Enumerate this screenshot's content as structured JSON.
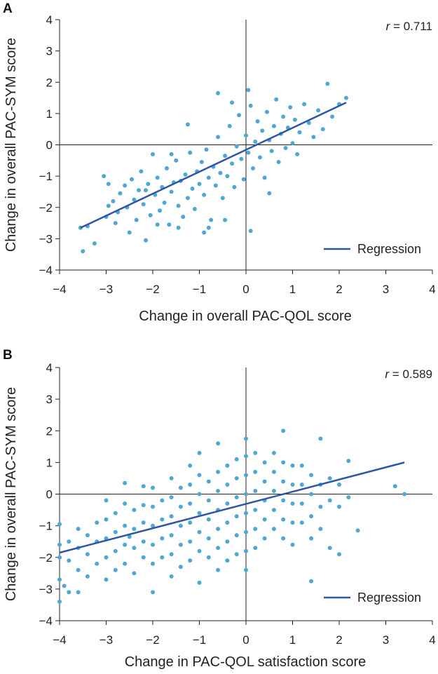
{
  "chart_data": [
    {
      "type": "scatter",
      "panel_label": "A",
      "xlabel": "Change in overall PAC-QOL score",
      "ylabel": "Change in overall PAC-SYM score",
      "xlim": [
        -4,
        4
      ],
      "ylim": [
        -4,
        4
      ],
      "xticks": [
        "−4",
        "−3",
        "−2",
        "−1",
        "0",
        "1",
        "2",
        "3",
        "4"
      ],
      "yticks": [
        "4",
        "3",
        "2",
        "1",
        "0",
        "−1",
        "−2",
        "−3",
        "−4"
      ],
      "r_label": "r",
      "r_value": " = 0.711",
      "legend": "Regression",
      "legend_position": "bottom-right",
      "point_color": "#4fa7d4",
      "line_color": "#2e56a3",
      "regression": {
        "x": [
          -3.55,
          2.15
        ],
        "y": [
          -2.65,
          1.35
        ]
      },
      "points": [
        [
          -3.55,
          -2.65
        ],
        [
          -3.5,
          -3.4
        ],
        [
          -3.25,
          -3.15
        ],
        [
          -3.05,
          -1.0
        ],
        [
          -3.0,
          -2.3
        ],
        [
          -2.95,
          -1.95
        ],
        [
          -2.85,
          -1.8
        ],
        [
          -2.8,
          -2.5
        ],
        [
          -2.75,
          -2.15
        ],
        [
          -2.7,
          -1.55
        ],
        [
          -2.6,
          -1.3
        ],
        [
          -2.55,
          -2.0
        ],
        [
          -2.5,
          -2.8
        ],
        [
          -2.45,
          -1.1
        ],
        [
          -2.4,
          -1.75
        ],
        [
          -2.35,
          -2.4
        ],
        [
          -2.3,
          -1.45
        ],
        [
          -2.25,
          -0.85
        ],
        [
          -2.2,
          -1.9
        ],
        [
          -2.15,
          -3.05
        ],
        [
          -2.1,
          -1.25
        ],
        [
          -2.05,
          -2.25
        ],
        [
          -2.0,
          -0.3
        ],
        [
          -1.95,
          -1.6
        ],
        [
          -1.9,
          -1.05
        ],
        [
          -1.85,
          -2.1
        ],
        [
          -1.8,
          -1.35
        ],
        [
          -1.75,
          -1.85
        ],
        [
          -1.7,
          -0.75
        ],
        [
          -1.65,
          -2.55
        ],
        [
          -1.6,
          -1.5
        ],
        [
          -1.55,
          -1.2
        ],
        [
          -1.5,
          -0.5
        ],
        [
          -1.45,
          -1.95
        ],
        [
          -1.4,
          -1.15
        ],
        [
          -1.35,
          -2.3
        ],
        [
          -1.3,
          -0.95
        ],
        [
          -1.25,
          -1.7
        ],
        [
          -1.2,
          -0.25
        ],
        [
          -1.15,
          -1.4
        ],
        [
          -1.1,
          -2.05
        ],
        [
          -1.05,
          -0.85
        ],
        [
          -1.0,
          -1.25
        ],
        [
          -0.95,
          -0.55
        ],
        [
          -0.9,
          -1.6
        ],
        [
          -0.85,
          -0.15
        ],
        [
          -0.8,
          -1.05
        ],
        [
          -0.75,
          -2.4
        ],
        [
          -0.7,
          -0.7
        ],
        [
          -0.65,
          -1.3
        ],
        [
          -0.6,
          0.25
        ],
        [
          -0.55,
          -0.9
        ],
        [
          -0.5,
          -1.7
        ],
        [
          -0.45,
          -0.35
        ],
        [
          -0.4,
          -1.0
        ],
        [
          -0.35,
          0.6
        ],
        [
          -0.3,
          -0.6
        ],
        [
          -0.25,
          -1.35
        ],
        [
          -0.2,
          -0.05
        ],
        [
          -0.15,
          0.95
        ],
        [
          -0.1,
          -0.45
        ],
        [
          -0.05,
          -1.1
        ],
        [
          0.0,
          0.3
        ],
        [
          0.05,
          -0.25
        ],
        [
          0.1,
          1.25
        ],
        [
          0.15,
          -0.75
        ],
        [
          0.2,
          0.1
        ],
        [
          0.25,
          0.75
        ],
        [
          0.3,
          -0.4
        ],
        [
          0.35,
          0.45
        ],
        [
          0.4,
          -1.05
        ],
        [
          0.45,
          1.05
        ],
        [
          0.5,
          0.15
        ],
        [
          0.55,
          -0.2
        ],
        [
          0.6,
          0.6
        ],
        [
          0.65,
          1.45
        ],
        [
          0.7,
          -0.55
        ],
        [
          0.75,
          0.35
        ],
        [
          0.8,
          0.9
        ],
        [
          0.85,
          -0.1
        ],
        [
          0.9,
          0.55
        ],
        [
          0.95,
          1.2
        ],
        [
          1.0,
          0.05
        ],
        [
          1.05,
          0.8
        ],
        [
          1.1,
          -0.3
        ],
        [
          1.15,
          0.4
        ],
        [
          1.25,
          1.3
        ],
        [
          1.35,
          0.7
        ],
        [
          1.45,
          0.25
        ],
        [
          1.55,
          1.1
        ],
        [
          1.65,
          0.5
        ],
        [
          1.75,
          1.95
        ],
        [
          1.85,
          0.9
        ],
        [
          2.0,
          1.3
        ],
        [
          2.15,
          1.5
        ],
        [
          -1.6,
          -0.3
        ],
        [
          -1.25,
          0.65
        ],
        [
          -0.9,
          -2.8
        ],
        [
          -0.6,
          1.65
        ],
        [
          -0.3,
          1.35
        ],
        [
          0.05,
          1.75
        ],
        [
          0.1,
          -2.75
        ],
        [
          0.5,
          -1.55
        ],
        [
          -2.15,
          -1.45
        ],
        [
          -1.9,
          -2.55
        ],
        [
          -1.45,
          -2.65
        ],
        [
          -0.8,
          -2.65
        ],
        [
          -0.45,
          -2.4
        ],
        [
          -3.4,
          -2.6
        ],
        [
          -2.95,
          -1.25
        ]
      ]
    },
    {
      "type": "scatter",
      "panel_label": "B",
      "xlabel": "Change in PAC-QOL satisfaction score",
      "ylabel": "Change in overall PAC-SYM score",
      "xlim": [
        -4,
        4
      ],
      "ylim": [
        -4,
        4
      ],
      "xticks": [
        "−4",
        "−3",
        "−2",
        "−1",
        "0",
        "1",
        "2",
        "3",
        "4"
      ],
      "yticks": [
        "4",
        "3",
        "2",
        "1",
        "0",
        "−1",
        "−2",
        "−3",
        "−4"
      ],
      "r_label": "r",
      "r_value": " = 0.589",
      "legend": "Regression",
      "legend_position": "bottom-right",
      "point_color": "#4fa7d4",
      "line_color": "#2e56a3",
      "regression": {
        "x": [
          -4.0,
          3.4
        ],
        "y": [
          -1.85,
          1.0
        ]
      },
      "points": [
        [
          -4.0,
          -0.95
        ],
        [
          -4.0,
          -1.6
        ],
        [
          -4.0,
          -2.0
        ],
        [
          -4.0,
          -2.7
        ],
        [
          -4.0,
          -3.4
        ],
        [
          -3.8,
          -1.5
        ],
        [
          -3.8,
          -2.1
        ],
        [
          -3.8,
          -3.1
        ],
        [
          -3.6,
          -1.1
        ],
        [
          -3.6,
          -1.7
        ],
        [
          -3.6,
          -2.4
        ],
        [
          -3.6,
          -3.1
        ],
        [
          -3.4,
          -1.3
        ],
        [
          -3.4,
          -1.9
        ],
        [
          -3.4,
          -2.6
        ],
        [
          -3.2,
          -0.9
        ],
        [
          -3.2,
          -1.5
        ],
        [
          -3.2,
          -2.2
        ],
        [
          -3.0,
          -0.2
        ],
        [
          -3.0,
          -0.8
        ],
        [
          -3.0,
          -1.4
        ],
        [
          -3.0,
          -2.0
        ],
        [
          -3.0,
          -2.7
        ],
        [
          -2.8,
          -0.6
        ],
        [
          -2.8,
          -1.2
        ],
        [
          -2.8,
          -1.8
        ],
        [
          -2.8,
          -2.4
        ],
        [
          -2.6,
          0.35
        ],
        [
          -2.6,
          -0.3
        ],
        [
          -2.6,
          -1.0
        ],
        [
          -2.6,
          -1.6
        ],
        [
          -2.6,
          -2.2
        ],
        [
          -2.4,
          -0.5
        ],
        [
          -2.4,
          -1.1
        ],
        [
          -2.4,
          -1.7
        ],
        [
          -2.4,
          -2.5
        ],
        [
          -2.2,
          0.25
        ],
        [
          -2.2,
          -0.35
        ],
        [
          -2.2,
          -0.9
        ],
        [
          -2.2,
          -1.5
        ],
        [
          -2.2,
          -2.0
        ],
        [
          -2.0,
          0.2
        ],
        [
          -2.0,
          -0.4
        ],
        [
          -2.0,
          -1.0
        ],
        [
          -2.0,
          -1.6
        ],
        [
          -2.0,
          -2.2
        ],
        [
          -2.0,
          -3.1
        ],
        [
          -1.8,
          -0.2
        ],
        [
          -1.8,
          -0.8
        ],
        [
          -1.8,
          -1.4
        ],
        [
          -1.8,
          -2.0
        ],
        [
          -1.6,
          0.5
        ],
        [
          -1.6,
          -0.1
        ],
        [
          -1.6,
          -0.7
        ],
        [
          -1.6,
          -1.3
        ],
        [
          -1.6,
          -1.9
        ],
        [
          -1.6,
          -2.6
        ],
        [
          -1.4,
          0.2
        ],
        [
          -1.4,
          -0.4
        ],
        [
          -1.4,
          -1.0
        ],
        [
          -1.4,
          -1.6
        ],
        [
          -1.4,
          -2.3
        ],
        [
          -1.2,
          0.9
        ],
        [
          -1.2,
          0.3
        ],
        [
          -1.2,
          -0.3
        ],
        [
          -1.2,
          -0.9
        ],
        [
          -1.2,
          -1.5
        ],
        [
          -1.2,
          -2.1
        ],
        [
          -1.0,
          1.3
        ],
        [
          -1.0,
          0.6
        ],
        [
          -1.0,
          0.0
        ],
        [
          -1.0,
          -0.6
        ],
        [
          -1.0,
          -1.2
        ],
        [
          -1.0,
          -1.8
        ],
        [
          -1.0,
          -2.8
        ],
        [
          -0.8,
          0.4
        ],
        [
          -0.8,
          -0.2
        ],
        [
          -0.8,
          -0.8
        ],
        [
          -0.8,
          -1.4
        ],
        [
          -0.8,
          -2.0
        ],
        [
          -0.6,
          1.6
        ],
        [
          -0.6,
          0.7
        ],
        [
          -0.6,
          0.1
        ],
        [
          -0.6,
          -0.5
        ],
        [
          -0.6,
          -1.1
        ],
        [
          -0.6,
          -1.7
        ],
        [
          -0.6,
          -2.4
        ],
        [
          -0.4,
          0.9
        ],
        [
          -0.4,
          0.3
        ],
        [
          -0.4,
          -0.3
        ],
        [
          -0.4,
          -0.9
        ],
        [
          -0.4,
          -1.5
        ],
        [
          -0.4,
          -2.1
        ],
        [
          -0.2,
          1.1
        ],
        [
          -0.2,
          0.5
        ],
        [
          -0.2,
          -0.1
        ],
        [
          -0.2,
          -0.7
        ],
        [
          -0.2,
          -1.3
        ],
        [
          -0.2,
          -1.9
        ],
        [
          0.0,
          1.75
        ],
        [
          0.0,
          1.2
        ],
        [
          0.0,
          0.6
        ],
        [
          0.0,
          0.0
        ],
        [
          0.0,
          -0.6
        ],
        [
          0.0,
          -1.2
        ],
        [
          0.0,
          -1.8
        ],
        [
          0.0,
          -2.4
        ],
        [
          0.2,
          1.3
        ],
        [
          0.2,
          0.7
        ],
        [
          0.2,
          0.1
        ],
        [
          0.2,
          -0.5
        ],
        [
          0.2,
          -1.1
        ],
        [
          0.2,
          -1.7
        ],
        [
          0.4,
          1.0
        ],
        [
          0.4,
          0.4
        ],
        [
          0.4,
          -0.2
        ],
        [
          0.4,
          -0.8
        ],
        [
          0.4,
          -1.4
        ],
        [
          0.6,
          1.3
        ],
        [
          0.6,
          0.7
        ],
        [
          0.6,
          0.1
        ],
        [
          0.6,
          -0.5
        ],
        [
          0.6,
          -1.1
        ],
        [
          0.8,
          2.0
        ],
        [
          0.8,
          1.0
        ],
        [
          0.8,
          0.4
        ],
        [
          0.8,
          -0.2
        ],
        [
          0.8,
          -0.8
        ],
        [
          0.8,
          -1.4
        ],
        [
          1.0,
          0.9
        ],
        [
          1.0,
          0.3
        ],
        [
          1.0,
          -0.3
        ],
        [
          1.0,
          -0.9
        ],
        [
          1.0,
          -1.6
        ],
        [
          1.2,
          0.9
        ],
        [
          1.2,
          0.3
        ],
        [
          1.2,
          -0.3
        ],
        [
          1.2,
          -0.9
        ],
        [
          1.4,
          0.6
        ],
        [
          1.4,
          0.0
        ],
        [
          1.4,
          -0.7
        ],
        [
          1.4,
          -1.4
        ],
        [
          1.4,
          -2.75
        ],
        [
          1.6,
          1.75
        ],
        [
          1.6,
          0.3
        ],
        [
          1.6,
          -0.4
        ],
        [
          1.6,
          -1.1
        ],
        [
          1.8,
          0.5
        ],
        [
          1.8,
          -0.2
        ],
        [
          1.8,
          -1.7
        ],
        [
          2.0,
          0.3
        ],
        [
          2.0,
          -0.4
        ],
        [
          2.0,
          -1.9
        ],
        [
          2.2,
          1.05
        ],
        [
          2.2,
          -0.1
        ],
        [
          2.4,
          -1.15
        ],
        [
          3.2,
          0.25
        ],
        [
          3.4,
          0.0
        ],
        [
          -3.9,
          -2.9
        ],
        [
          -2.5,
          -1.35
        ]
      ]
    }
  ]
}
